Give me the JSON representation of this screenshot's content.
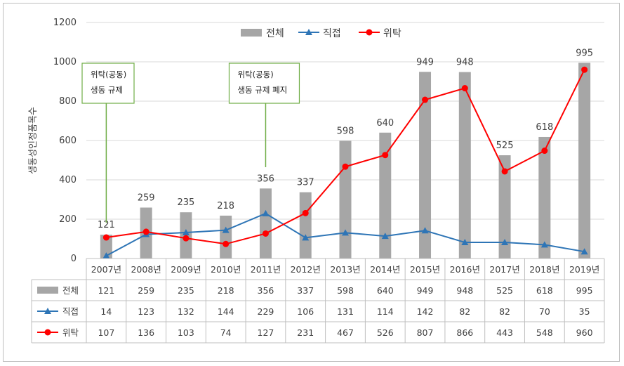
{
  "chart_data": {
    "type": "bar",
    "categories": [
      "2007년",
      "2008년",
      "2009년",
      "2010년",
      "2011년",
      "2012년",
      "2013년",
      "2014년",
      "2015년",
      "2016년",
      "2017년",
      "2018년",
      "2019년"
    ],
    "ylabel": "생동성인정품목수",
    "ylim": [
      0,
      1200
    ],
    "yticks": [
      0,
      200,
      400,
      600,
      800,
      1000,
      1200
    ],
    "grid": true,
    "legend_position": "top",
    "series": [
      {
        "name": "전체",
        "kind": "bar",
        "color": "#a6a6a6",
        "values": [
          121,
          259,
          235,
          218,
          356,
          337,
          598,
          640,
          949,
          948,
          525,
          618,
          995
        ]
      },
      {
        "name": "직접",
        "kind": "line",
        "color": "#2e75b6",
        "marker": "triangle",
        "values": [
          14,
          123,
          132,
          144,
          229,
          106,
          131,
          114,
          142,
          82,
          82,
          70,
          35
        ]
      },
      {
        "name": "위탁",
        "kind": "line",
        "color": "#ff0000",
        "marker": "circle",
        "values": [
          107,
          136,
          103,
          74,
          127,
          231,
          467,
          526,
          807,
          866,
          443,
          548,
          960
        ]
      }
    ],
    "annotations": [
      {
        "category": "2007년",
        "lines": [
          "위탁(공동)",
          "생동 규제"
        ],
        "color": "#70ad47"
      },
      {
        "category": "2011년",
        "lines": [
          "위탁(공동)",
          "생동 규제 폐지"
        ],
        "color": "#70ad47"
      }
    ]
  }
}
